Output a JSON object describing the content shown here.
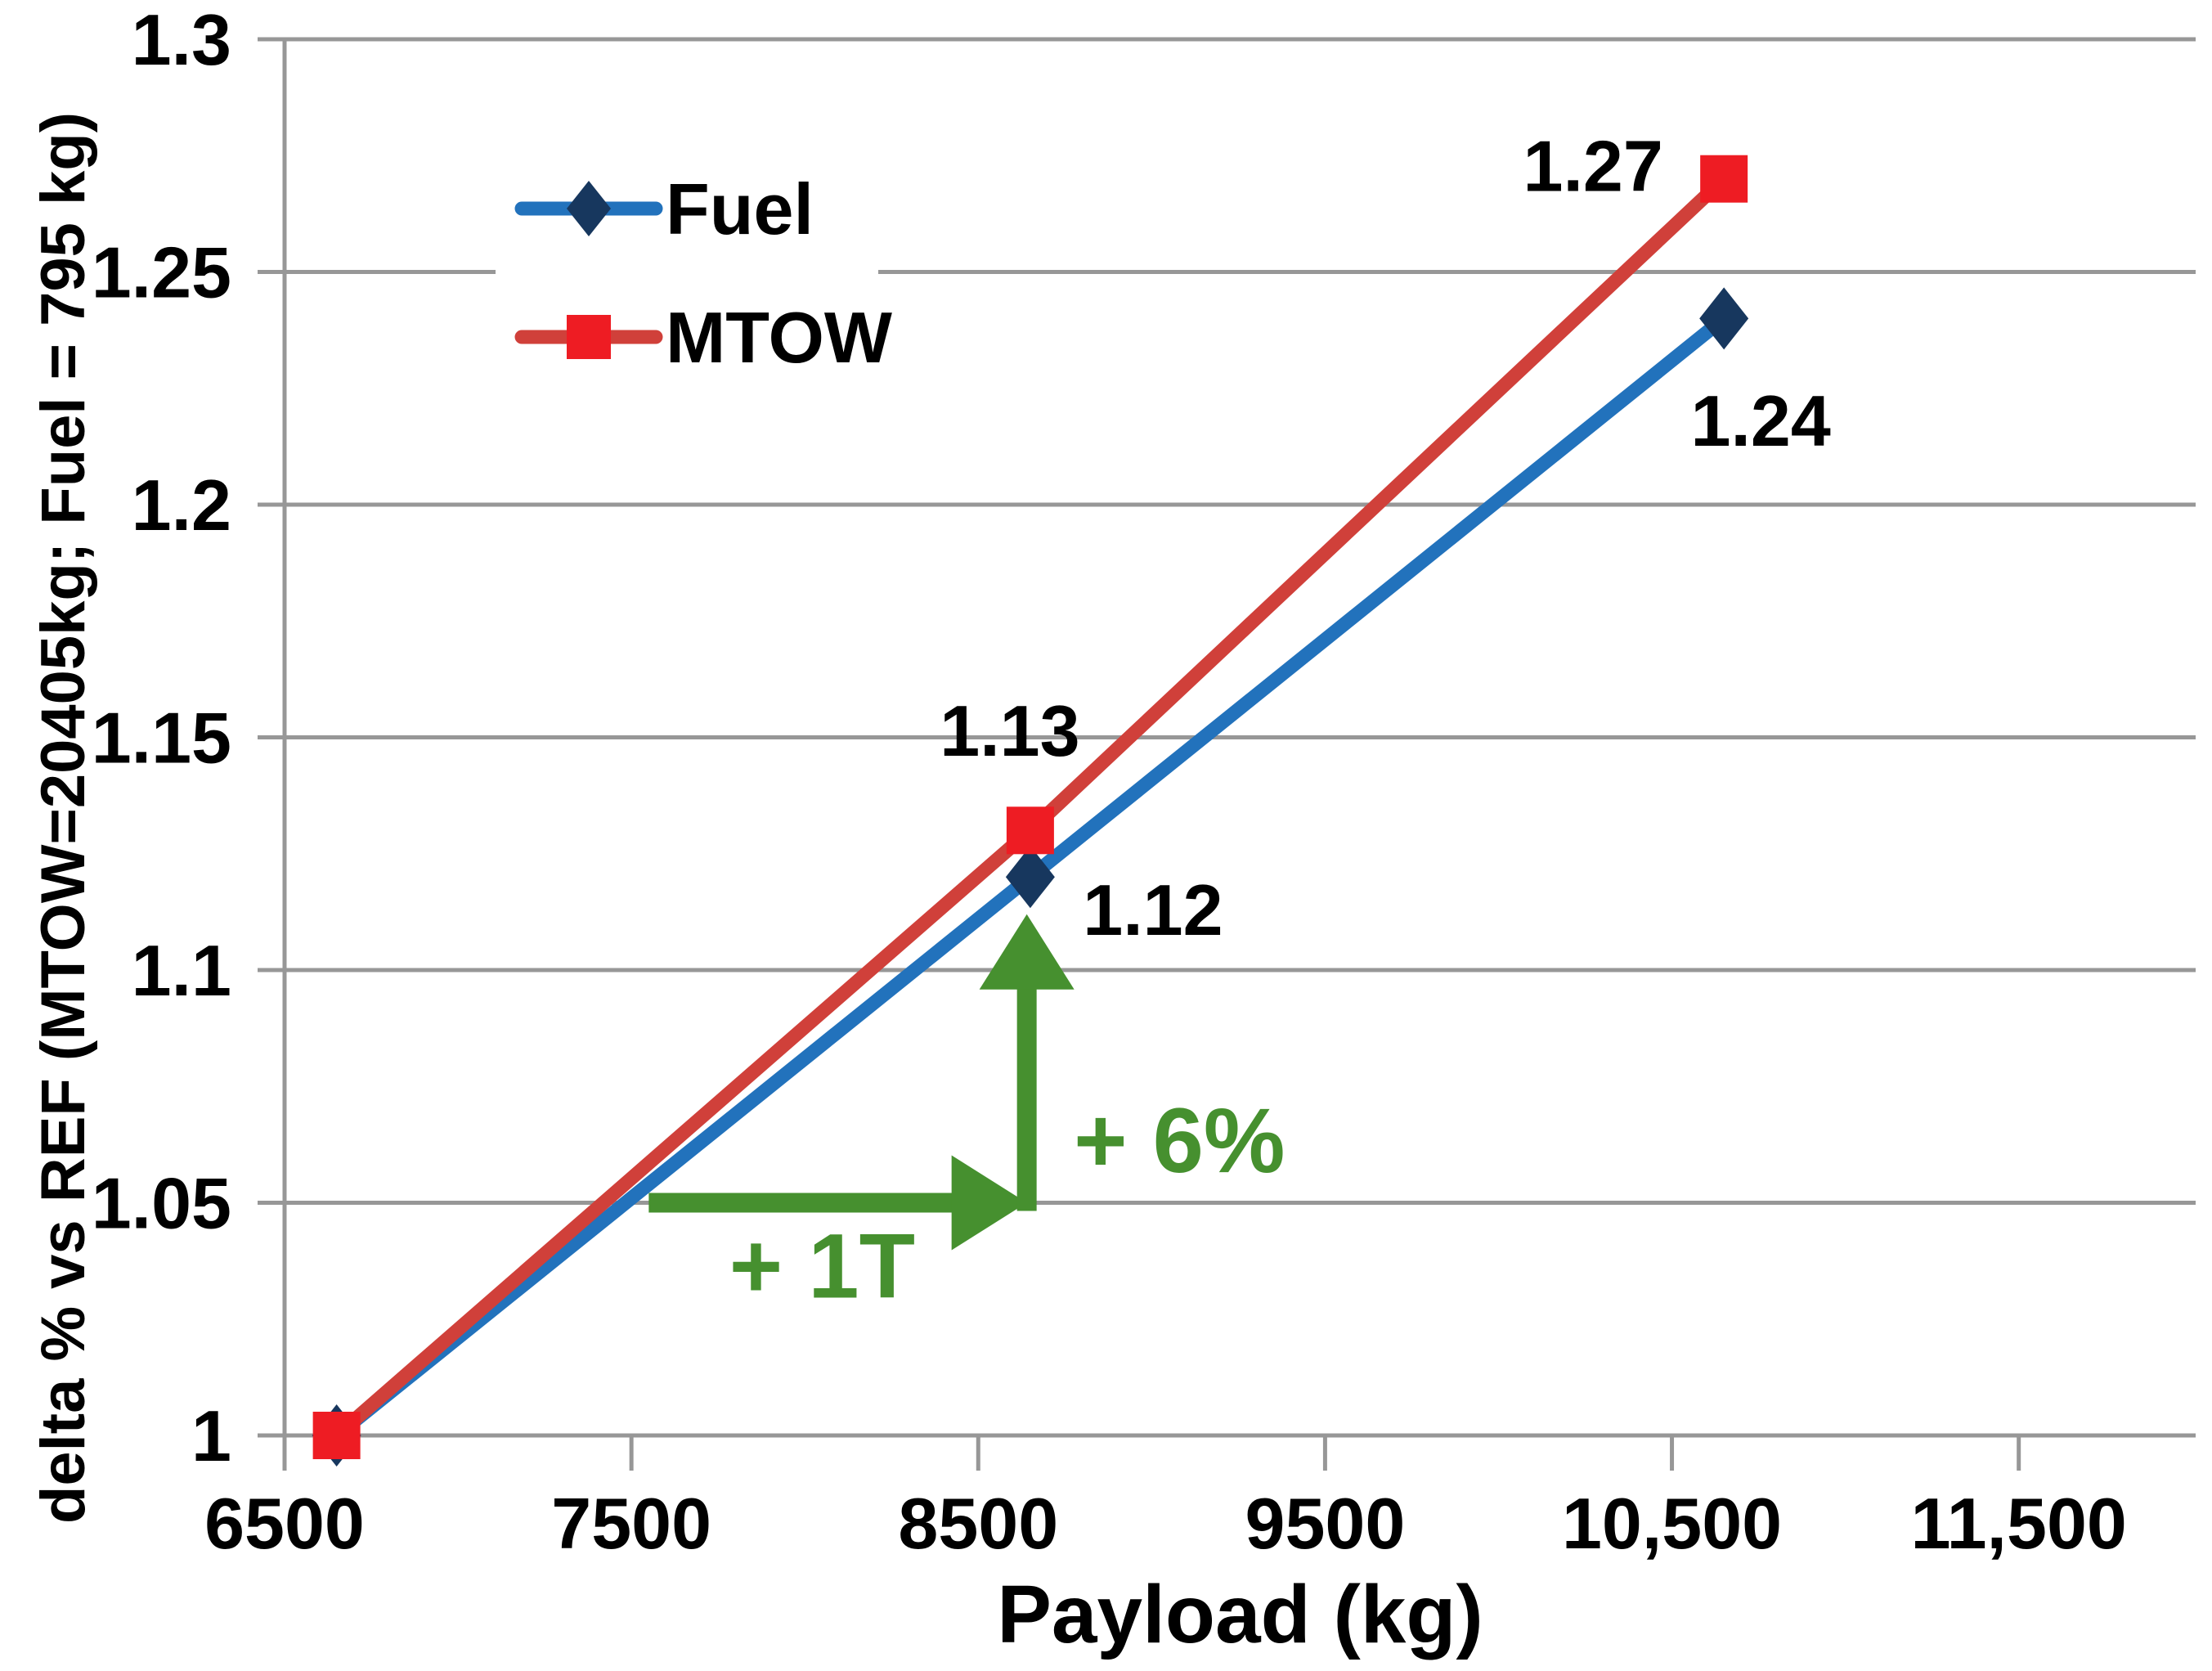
{
  "chart_data": {
    "type": "line",
    "title": "",
    "xlabel": "Payload (kg)",
    "ylabel": "delta % vs REF (MTOW=20405kg; Fuel = 795 kg)",
    "xlim": [
      6500,
      12010
    ],
    "ylim": [
      1.0,
      1.3
    ],
    "grid": true,
    "background_color": "#ffffff",
    "gridline_color": "#979797",
    "text_color": "#000000",
    "x_ticks": [
      {
        "value": 6500,
        "label": "6500"
      },
      {
        "value": 7500,
        "label": "7500"
      },
      {
        "value": 8500,
        "label": "8500"
      },
      {
        "value": 9500,
        "label": "9500"
      },
      {
        "value": 10500,
        "label": "10,500"
      },
      {
        "value": 11500,
        "label": "11,500"
      }
    ],
    "y_ticks": [
      {
        "value": 1.0,
        "label": "1"
      },
      {
        "value": 1.05,
        "label": "1.05"
      },
      {
        "value": 1.1,
        "label": "1.1"
      },
      {
        "value": 1.15,
        "label": "1.15"
      },
      {
        "value": 1.2,
        "label": "1.2"
      },
      {
        "value": 1.25,
        "label": "1.25"
      },
      {
        "value": 1.3,
        "label": "1.3"
      }
    ],
    "series": [
      {
        "name": "Fuel",
        "line_color": "#2272BC",
        "marker": "diamond",
        "marker_color": "#17375E",
        "x": [
          6650,
          8650,
          10650
        ],
        "values": [
          1.0,
          1.12,
          1.24
        ],
        "point_labels": [
          "",
          "1.12",
          "1.24"
        ],
        "label_dx": [
          0,
          150,
          45
        ],
        "label_dy": [
          0,
          40,
          125
        ]
      },
      {
        "name": "MTOW",
        "line_color": "#D0403A",
        "marker": "square",
        "marker_color": "#EE1C23",
        "x": [
          6650,
          8650,
          10650
        ],
        "values": [
          1.0,
          1.13,
          1.27
        ],
        "point_labels": [
          "",
          "1.13",
          "1.27"
        ],
        "label_dx": [
          0,
          -25,
          -160
        ],
        "label_dy": [
          0,
          -122,
          -16
        ]
      }
    ],
    "legend": {
      "position": "upper-left-inset",
      "items": [
        {
          "label": "Fuel"
        },
        {
          "label": "MTOW"
        }
      ]
    },
    "annotations": {
      "color": "#46902F",
      "arrows": [
        {
          "label": "+ 1T",
          "x1": 7550,
          "y1": 1.05,
          "x2": 8640,
          "y2": 1.05,
          "label_x": 8050,
          "label_y": 1.0365
        },
        {
          "label": "+ 6%",
          "x1": 8640,
          "y1": 1.05,
          "x2": 8640,
          "y2": 1.112,
          "label_x": 9080,
          "label_y": 1.0635
        }
      ]
    }
  }
}
